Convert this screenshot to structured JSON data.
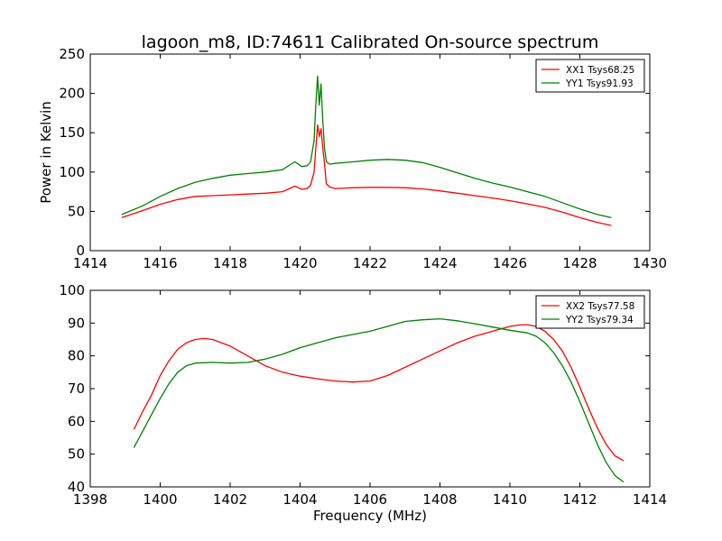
{
  "figure": {
    "title": "lagoon_m8, ID:74611 Calibrated On-source spectrum",
    "xlabel_bottom": "Frequency (MHz)",
    "ylabel_top": "Power in Kelvin"
  },
  "chart_data": [
    {
      "type": "line",
      "title": "lagoon_m8, ID:74611 Calibrated On-source spectrum",
      "xlabel": "",
      "ylabel": "Power in Kelvin",
      "xlim": [
        1414,
        1430
      ],
      "ylim": [
        0,
        250
      ],
      "xticks": [
        1414,
        1416,
        1418,
        1420,
        1422,
        1424,
        1426,
        1428,
        1430
      ],
      "yticks": [
        0,
        50,
        100,
        150,
        200,
        250
      ],
      "grid": false,
      "legend": "top-right",
      "series": [
        {
          "name": "XX1 Tsys68.25",
          "color": "#ff0000",
          "x": [
            1414.9,
            1415.5,
            1416.0,
            1416.5,
            1417.0,
            1417.5,
            1418.0,
            1418.5,
            1419.0,
            1419.5,
            1419.7,
            1419.85,
            1419.95,
            1420.05,
            1420.2,
            1420.3,
            1420.4,
            1420.45,
            1420.5,
            1420.55,
            1420.6,
            1420.65,
            1420.7,
            1420.75,
            1420.85,
            1421.0,
            1421.5,
            1422.0,
            1422.5,
            1423.0,
            1423.5,
            1424.0,
            1424.5,
            1425.0,
            1425.5,
            1426.0,
            1426.5,
            1427.0,
            1427.5,
            1428.0,
            1428.5,
            1428.9
          ],
          "values": [
            42,
            51,
            59,
            65,
            69,
            70,
            71,
            72,
            73,
            75,
            79,
            82,
            80,
            78,
            79,
            83,
            100,
            130,
            160,
            145,
            155,
            130,
            110,
            85,
            81,
            79,
            80,
            80.5,
            80.5,
            80,
            78.5,
            76,
            73,
            70,
            67,
            63.5,
            59.5,
            55,
            49,
            42,
            36,
            32
          ]
        },
        {
          "name": "YY1 Tsys91.93",
          "color": "#008000",
          "x": [
            1414.9,
            1415.5,
            1416.0,
            1416.5,
            1417.0,
            1417.5,
            1418.0,
            1418.5,
            1419.0,
            1419.5,
            1419.7,
            1419.85,
            1419.95,
            1420.05,
            1420.2,
            1420.3,
            1420.4,
            1420.45,
            1420.5,
            1420.55,
            1420.6,
            1420.65,
            1420.7,
            1420.75,
            1420.85,
            1421.0,
            1421.5,
            1422.0,
            1422.5,
            1423.0,
            1423.5,
            1424.0,
            1424.5,
            1425.0,
            1425.5,
            1426.0,
            1426.5,
            1427.0,
            1427.5,
            1428.0,
            1428.5,
            1428.9
          ],
          "values": [
            46,
            57,
            69,
            79,
            87,
            92,
            96,
            98,
            100,
            103,
            109,
            113,
            110,
            107,
            108,
            113,
            140,
            185,
            222,
            185,
            212,
            165,
            130,
            113,
            110,
            111,
            113,
            115,
            116,
            115,
            112,
            106,
            99,
            92,
            86,
            81,
            75,
            69,
            61,
            53,
            46,
            42
          ]
        }
      ]
    },
    {
      "type": "line",
      "title": "",
      "xlabel": "Frequency (MHz)",
      "ylabel": "",
      "xlim": [
        1398,
        1414
      ],
      "ylim": [
        40,
        100
      ],
      "xticks": [
        1398,
        1400,
        1402,
        1404,
        1406,
        1408,
        1410,
        1412,
        1414
      ],
      "yticks": [
        40,
        50,
        60,
        70,
        80,
        90,
        100
      ],
      "grid": false,
      "legend": "top-right",
      "series": [
        {
          "name": "XX2 Tsys77.58",
          "color": "#ff0000",
          "x": [
            1399.25,
            1399.5,
            1399.75,
            1400.0,
            1400.25,
            1400.5,
            1400.75,
            1401.0,
            1401.25,
            1401.5,
            1402.0,
            1402.5,
            1403.0,
            1403.5,
            1404.0,
            1404.5,
            1405.0,
            1405.5,
            1406.0,
            1406.5,
            1407.0,
            1407.5,
            1408.0,
            1408.5,
            1409.0,
            1409.5,
            1410.0,
            1410.25,
            1410.5,
            1410.75,
            1411.0,
            1411.25,
            1411.5,
            1411.75,
            1412.0,
            1412.25,
            1412.5,
            1412.75,
            1413.0,
            1413.25
          ],
          "values": [
            57.5,
            63,
            68,
            74,
            78.5,
            82,
            84,
            85,
            85.3,
            85,
            83,
            80,
            77,
            75,
            73.8,
            73,
            72.3,
            72,
            72.3,
            74,
            76.5,
            79,
            81.5,
            84,
            86,
            87.5,
            89,
            89.4,
            89.5,
            89,
            87.5,
            85,
            81.5,
            76.5,
            70.5,
            64,
            58,
            53,
            49.5,
            48
          ]
        },
        {
          "name": "YY2 Tsys79.34",
          "color": "#008000",
          "x": [
            1399.25,
            1399.5,
            1399.75,
            1400.0,
            1400.25,
            1400.5,
            1400.75,
            1401.0,
            1401.5,
            1402.0,
            1402.5,
            1403.0,
            1403.5,
            1404.0,
            1404.5,
            1405.0,
            1405.5,
            1406.0,
            1406.5,
            1407.0,
            1407.5,
            1408.0,
            1408.5,
            1409.0,
            1409.5,
            1410.0,
            1410.5,
            1410.75,
            1411.0,
            1411.25,
            1411.5,
            1411.75,
            1412.0,
            1412.25,
            1412.5,
            1412.75,
            1413.0,
            1413.25
          ],
          "values": [
            52,
            57,
            62,
            67,
            71.5,
            75,
            77,
            77.8,
            78,
            77.8,
            78,
            79,
            80.5,
            82.5,
            84,
            85.5,
            86.5,
            87.5,
            89,
            90.5,
            91,
            91.3,
            90.7,
            89.8,
            88.8,
            87.8,
            87,
            86,
            84,
            81,
            77,
            72,
            66,
            59.5,
            53,
            47.5,
            43.5,
            41.5
          ]
        }
      ]
    }
  ]
}
